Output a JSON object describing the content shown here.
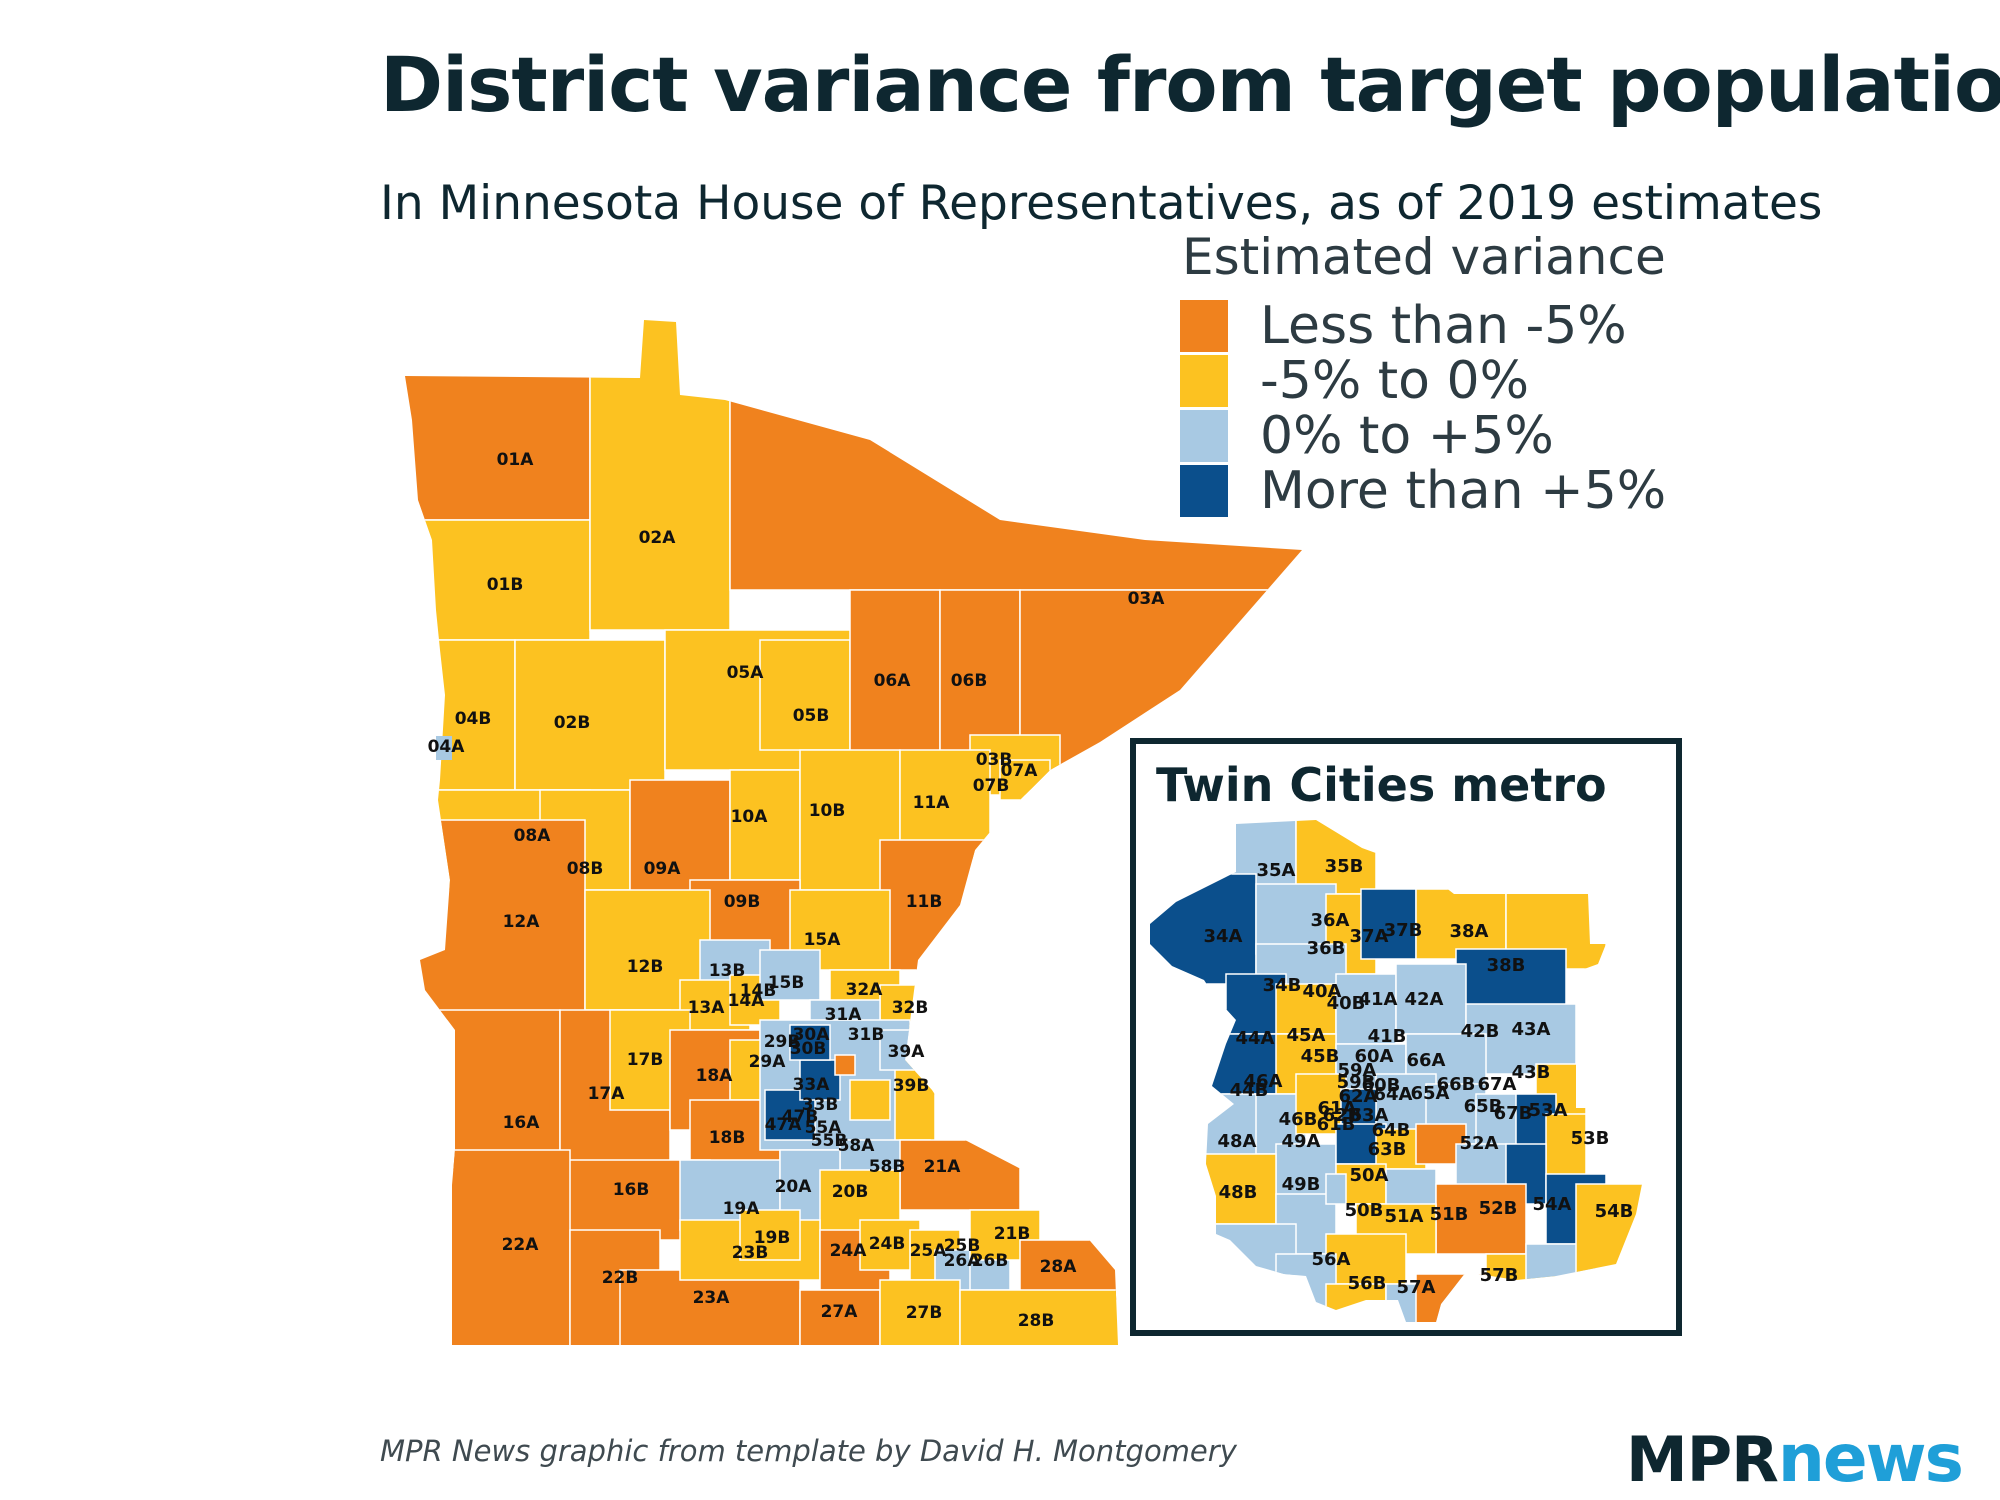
{
  "title": "District variance from target population",
  "subtitle": "In Minnesota House of Representatives, as of 2019 estimates",
  "legend": {
    "title": "Estimated variance",
    "items": [
      {
        "label": "Less than -5%",
        "color": "#f0821e"
      },
      {
        "label": "-5% to 0%",
        "color": "#fcc221"
      },
      {
        "label": "0% to +5%",
        "color": "#a8c9e3"
      },
      {
        "label": "More than +5%",
        "color": "#0b4f8c"
      }
    ]
  },
  "state_districts": [
    "01A",
    "01B",
    "02A",
    "02B",
    "03A",
    "03B",
    "04A",
    "04B",
    "05A",
    "05B",
    "06A",
    "06B",
    "07A",
    "07B",
    "08A",
    "08B",
    "09A",
    "09B",
    "10A",
    "10B",
    "11A",
    "11B",
    "12A",
    "12B",
    "13A",
    "13B",
    "14A",
    "14B",
    "15A",
    "15B",
    "16A",
    "16B",
    "17A",
    "17B",
    "18A",
    "18B",
    "19A",
    "19B",
    "20A",
    "20B",
    "21A",
    "21B",
    "22A",
    "22B",
    "23A",
    "23B",
    "24A",
    "24B",
    "25A",
    "25B",
    "26A",
    "26B",
    "27A",
    "27B",
    "28A",
    "28B",
    "29A",
    "29B",
    "30A",
    "30B",
    "31A",
    "31B",
    "32A",
    "32B",
    "33A",
    "33B",
    "39A",
    "39B",
    "47A",
    "47B",
    "55A",
    "55B",
    "58A",
    "58B"
  ],
  "inset": {
    "title": "Twin Cities metro",
    "districts": [
      "35A",
      "35B",
      "34A",
      "36A",
      "37A",
      "37B",
      "38A",
      "36B",
      "38B",
      "34B",
      "40A",
      "41A",
      "42A",
      "40B",
      "44A",
      "45A",
      "41B",
      "42B",
      "43A",
      "45B",
      "59A",
      "60A",
      "66A",
      "43B",
      "46A",
      "60B",
      "59B",
      "66B",
      "67A",
      "44B",
      "62A",
      "64A",
      "65A",
      "61A",
      "65B",
      "67B",
      "53A",
      "46B",
      "62B",
      "63A",
      "61B",
      "64B",
      "48A",
      "49A",
      "63B",
      "52A",
      "53B",
      "50A",
      "49B",
      "48B",
      "50B",
      "52B",
      "54A",
      "54B",
      "51A",
      "51B",
      "56A",
      "57B",
      "56B",
      "57A"
    ]
  },
  "credit": "MPR News graphic from template by David H. Montgomery",
  "logo": {
    "part1": "MPR",
    "part2": "news"
  }
}
